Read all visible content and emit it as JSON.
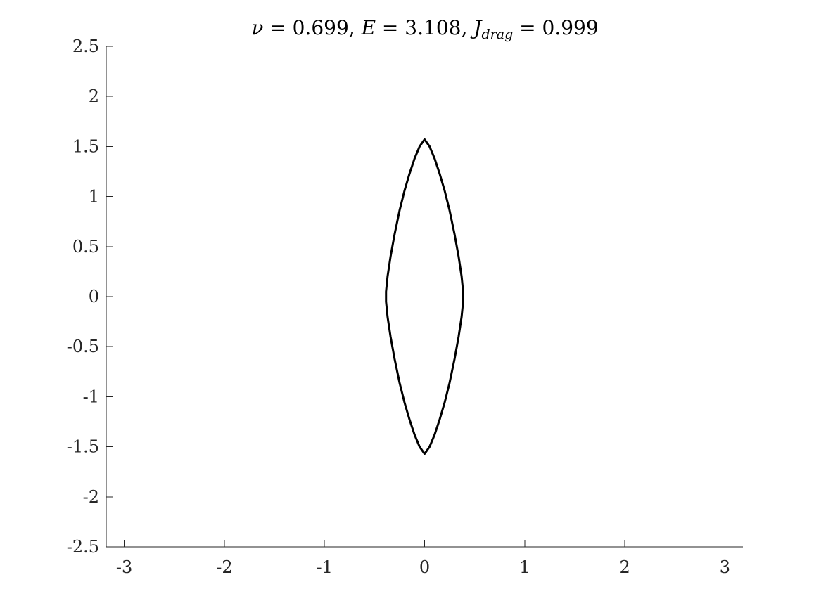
{
  "chart_data": {
    "type": "line",
    "title": {
      "nu_symbol": "ν",
      "nu_value": " = 0.699, ",
      "E_symbol": "E",
      "E_value": " = 3.108, ",
      "J_symbol": "J",
      "J_subscript": "drag",
      "J_value": " = 0.999"
    },
    "xlabel": "",
    "ylabel": "",
    "xlim": [
      -3.18,
      3.18
    ],
    "ylim": [
      -2.5,
      2.5
    ],
    "xticks": [
      -3,
      -2,
      -1,
      0,
      1,
      2,
      3
    ],
    "xtick_labels": [
      "-3",
      "-2",
      "-1",
      "0",
      "1",
      "2",
      "3"
    ],
    "yticks": [
      -2.5,
      -2,
      -1.5,
      -1,
      -0.5,
      0,
      0.5,
      1,
      1.5,
      2,
      2.5
    ],
    "ytick_labels": [
      "-2.5",
      "-2",
      "-1.5",
      "-1",
      "-0.5",
      "0",
      "0.5",
      "1",
      "1.5",
      "2",
      "2.5"
    ],
    "grid": false,
    "series": [
      {
        "color": "#000000",
        "x": [
          0,
          0.05,
          0.1,
          0.15,
          0.2,
          0.25,
          0.3,
          0.34,
          0.37,
          0.385,
          0.385,
          0.37,
          0.34,
          0.3,
          0.25,
          0.2,
          0.15,
          0.1,
          0.05,
          0,
          -0.05,
          -0.1,
          -0.15,
          -0.2,
          -0.25,
          -0.3,
          -0.34,
          -0.37,
          -0.385,
          -0.385,
          -0.37,
          -0.34,
          -0.3,
          -0.25,
          -0.2,
          -0.15,
          -0.1,
          -0.05,
          0
        ],
        "y": [
          1.57,
          1.5,
          1.38,
          1.23,
          1.06,
          0.86,
          0.62,
          0.4,
          0.2,
          0.05,
          -0.05,
          -0.2,
          -0.4,
          -0.62,
          -0.86,
          -1.06,
          -1.23,
          -1.38,
          -1.5,
          -1.57,
          -1.5,
          -1.38,
          -1.23,
          -1.06,
          -0.86,
          -0.62,
          -0.4,
          -0.2,
          -0.05,
          0.05,
          0.2,
          0.4,
          0.62,
          0.86,
          1.06,
          1.23,
          1.38,
          1.5,
          1.57
        ]
      }
    ]
  }
}
